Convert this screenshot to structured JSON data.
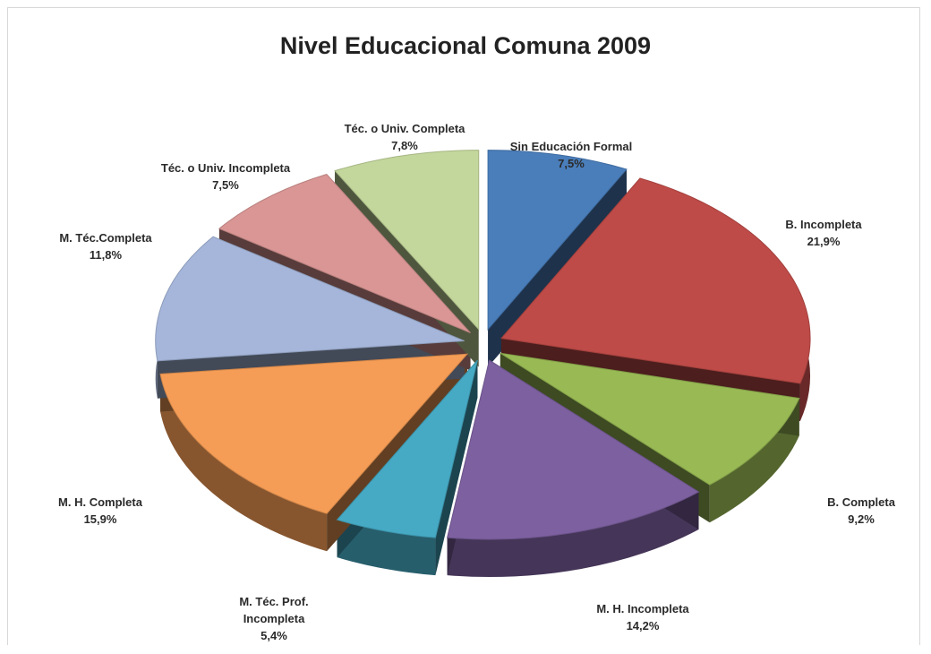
{
  "chart_data": {
    "type": "pie",
    "title": "Nivel Educacional Comuna 2009",
    "exploded": true,
    "three_d": true,
    "legend": "none",
    "slices": [
      {
        "label": "Sin Educación Formal",
        "value": 7.5,
        "value_label": "7,5%",
        "color": "#4A7EBB"
      },
      {
        "label": "B. Incompleta",
        "value": 21.9,
        "value_label": "21,9%",
        "color": "#BE4B48"
      },
      {
        "label": "B. Completa",
        "value": 9.2,
        "value_label": "9,2%",
        "color": "#98B954"
      },
      {
        "label": "M. H. Incompleta",
        "value": 14.2,
        "value_label": "14,2%",
        "color": "#7D60A0"
      },
      {
        "label": "M. Téc. Prof. Incompleta",
        "value": 5.4,
        "value_label": "5,4%",
        "color": "#46AAC5"
      },
      {
        "label": "M. H. Completa",
        "value": 15.9,
        "value_label": "15,9%",
        "color": "#F59D56"
      },
      {
        "label": "M. Téc.Completa",
        "value": 11.8,
        "value_label": "11,8%",
        "color": "#A5B6DA"
      },
      {
        "label": "Téc. o Univ. Incompleta",
        "value": 7.5,
        "value_label": "7,5%",
        "color": "#D99694"
      },
      {
        "label": "Téc. o Univ. Completa",
        "value": 7.8,
        "value_label": "7,8%",
        "color": "#C3D69B"
      }
    ]
  }
}
